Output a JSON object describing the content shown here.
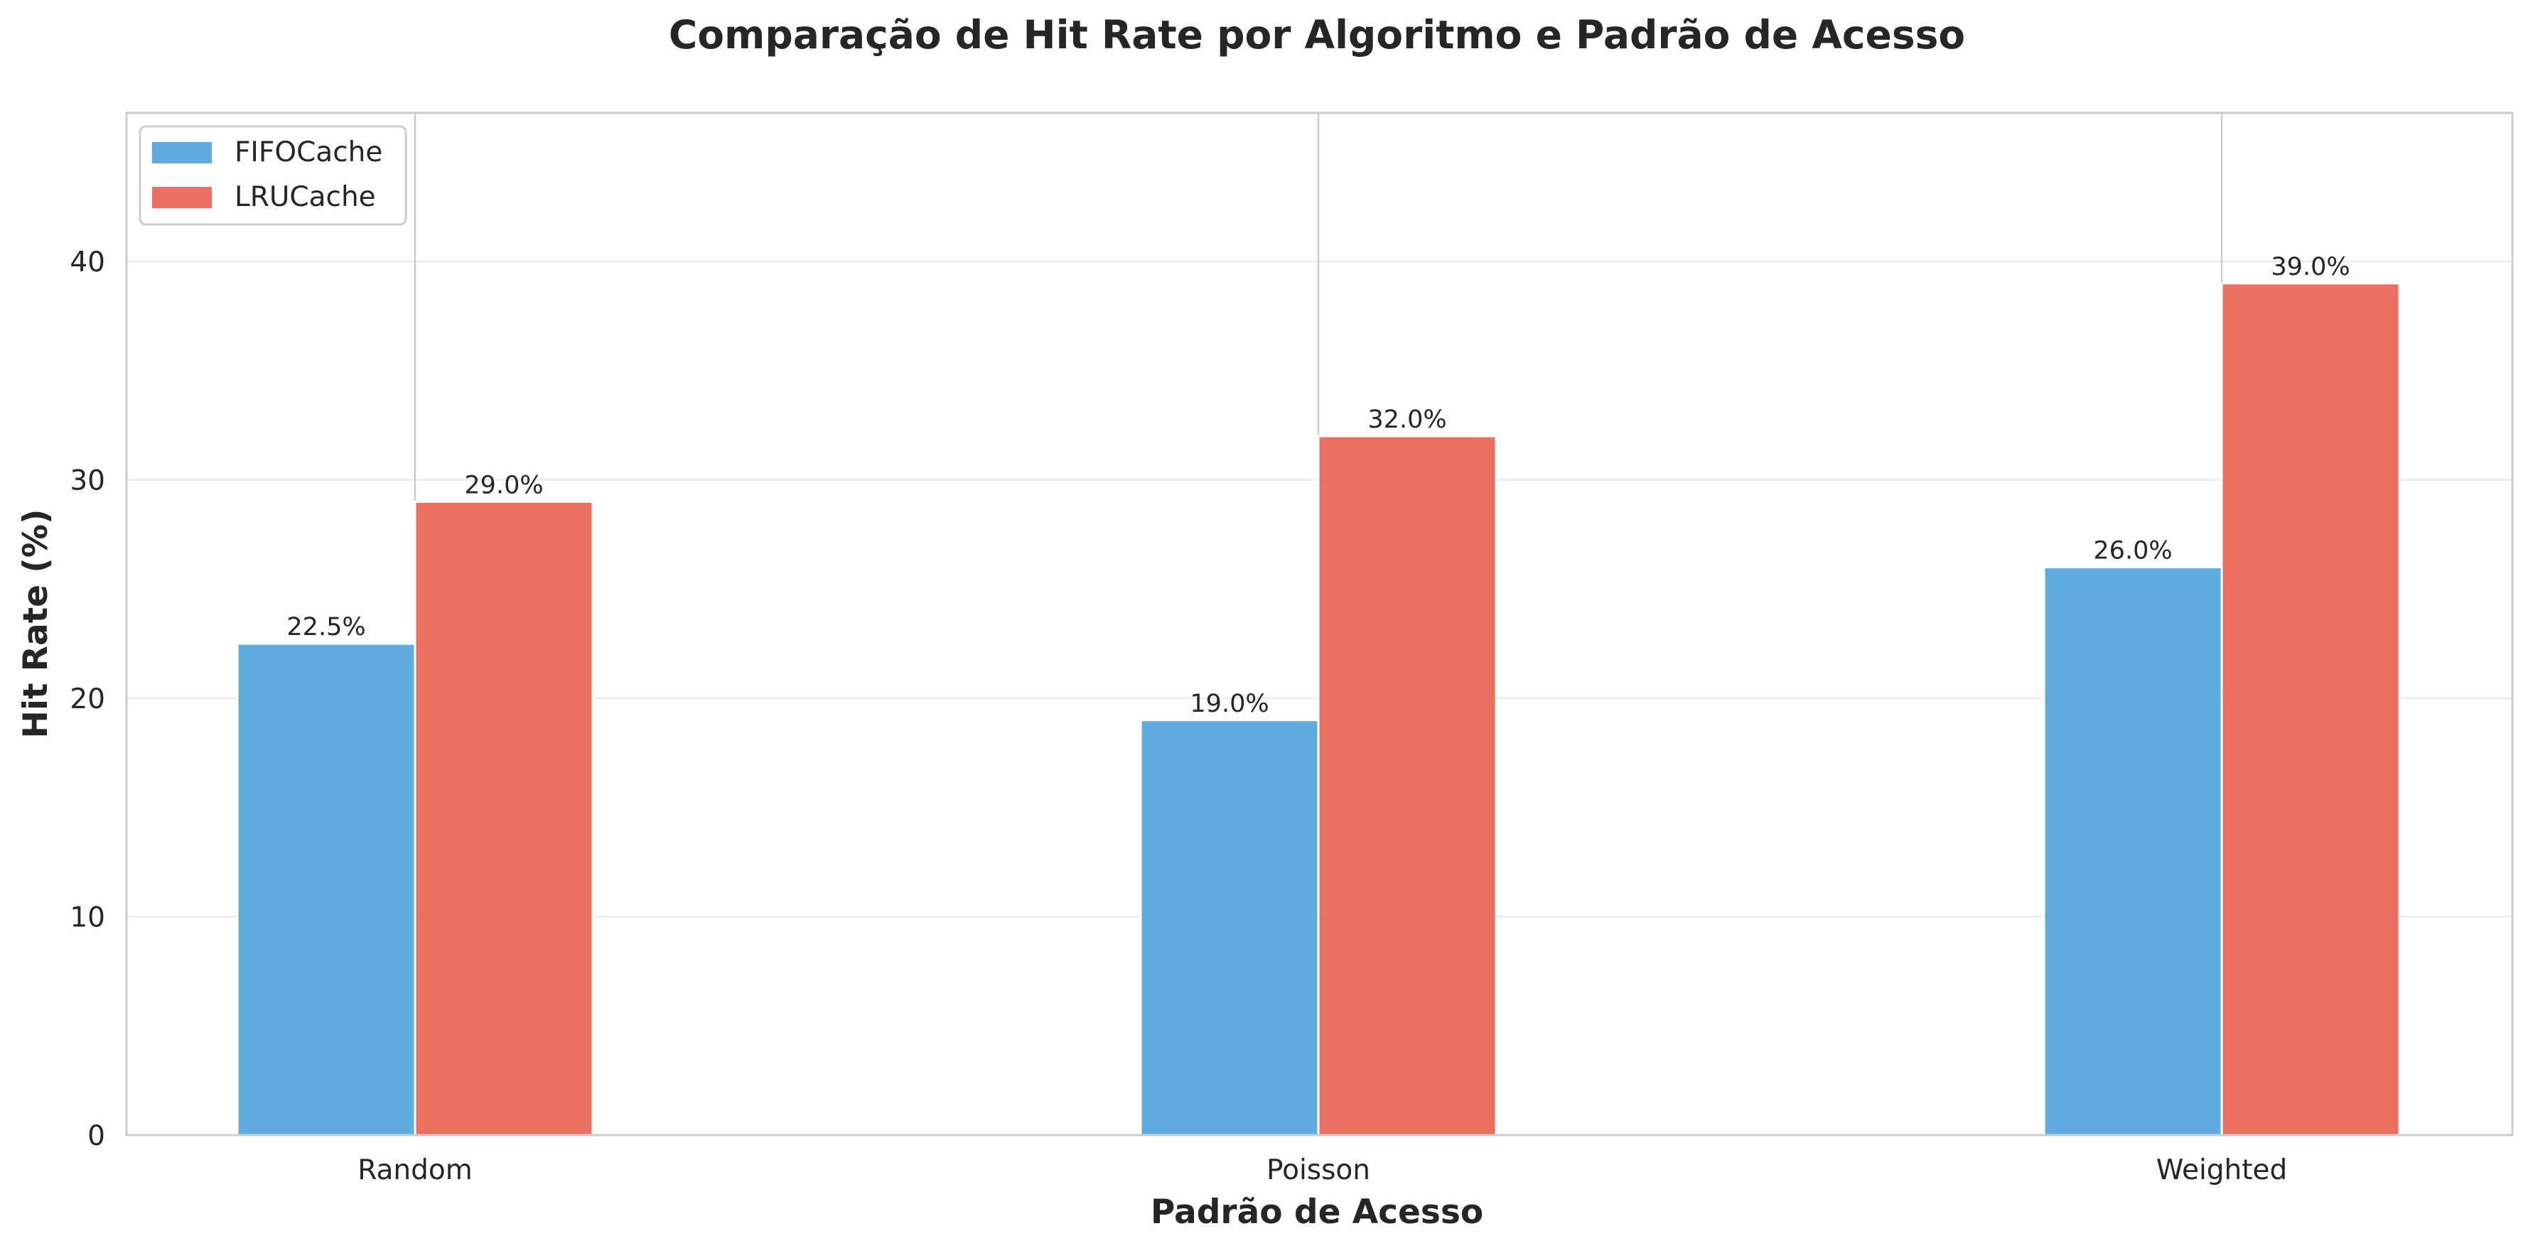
{
  "chart_data": {
    "type": "bar",
    "title": "Comparação de Hit Rate por Algoritmo e Padrão de Acesso",
    "xlabel": "Padrão de Acesso",
    "ylabel": "Hit Rate (%)",
    "categories": [
      "Random",
      "Poisson",
      "Weighted"
    ],
    "series": [
      {
        "name": "FIFOCache",
        "color": "#4fa3de",
        "values": [
          22.5,
          19.0,
          26.0
        ],
        "value_labels": [
          "22.5%",
          "19.0%",
          "26.0%"
        ]
      },
      {
        "name": "LRUCache",
        "color": "#e9604f",
        "values": [
          29.0,
          32.0,
          39.0
        ],
        "value_labels": [
          "29.0%",
          "32.0%",
          "39.0%"
        ]
      }
    ],
    "ylim": [
      0,
      46.8
    ],
    "yticks": [
      0,
      10,
      20,
      30,
      40
    ],
    "ytick_labels": [
      "0",
      "10",
      "20",
      "30",
      "40"
    ],
    "grid": true,
    "legend_position": "top-left"
  }
}
